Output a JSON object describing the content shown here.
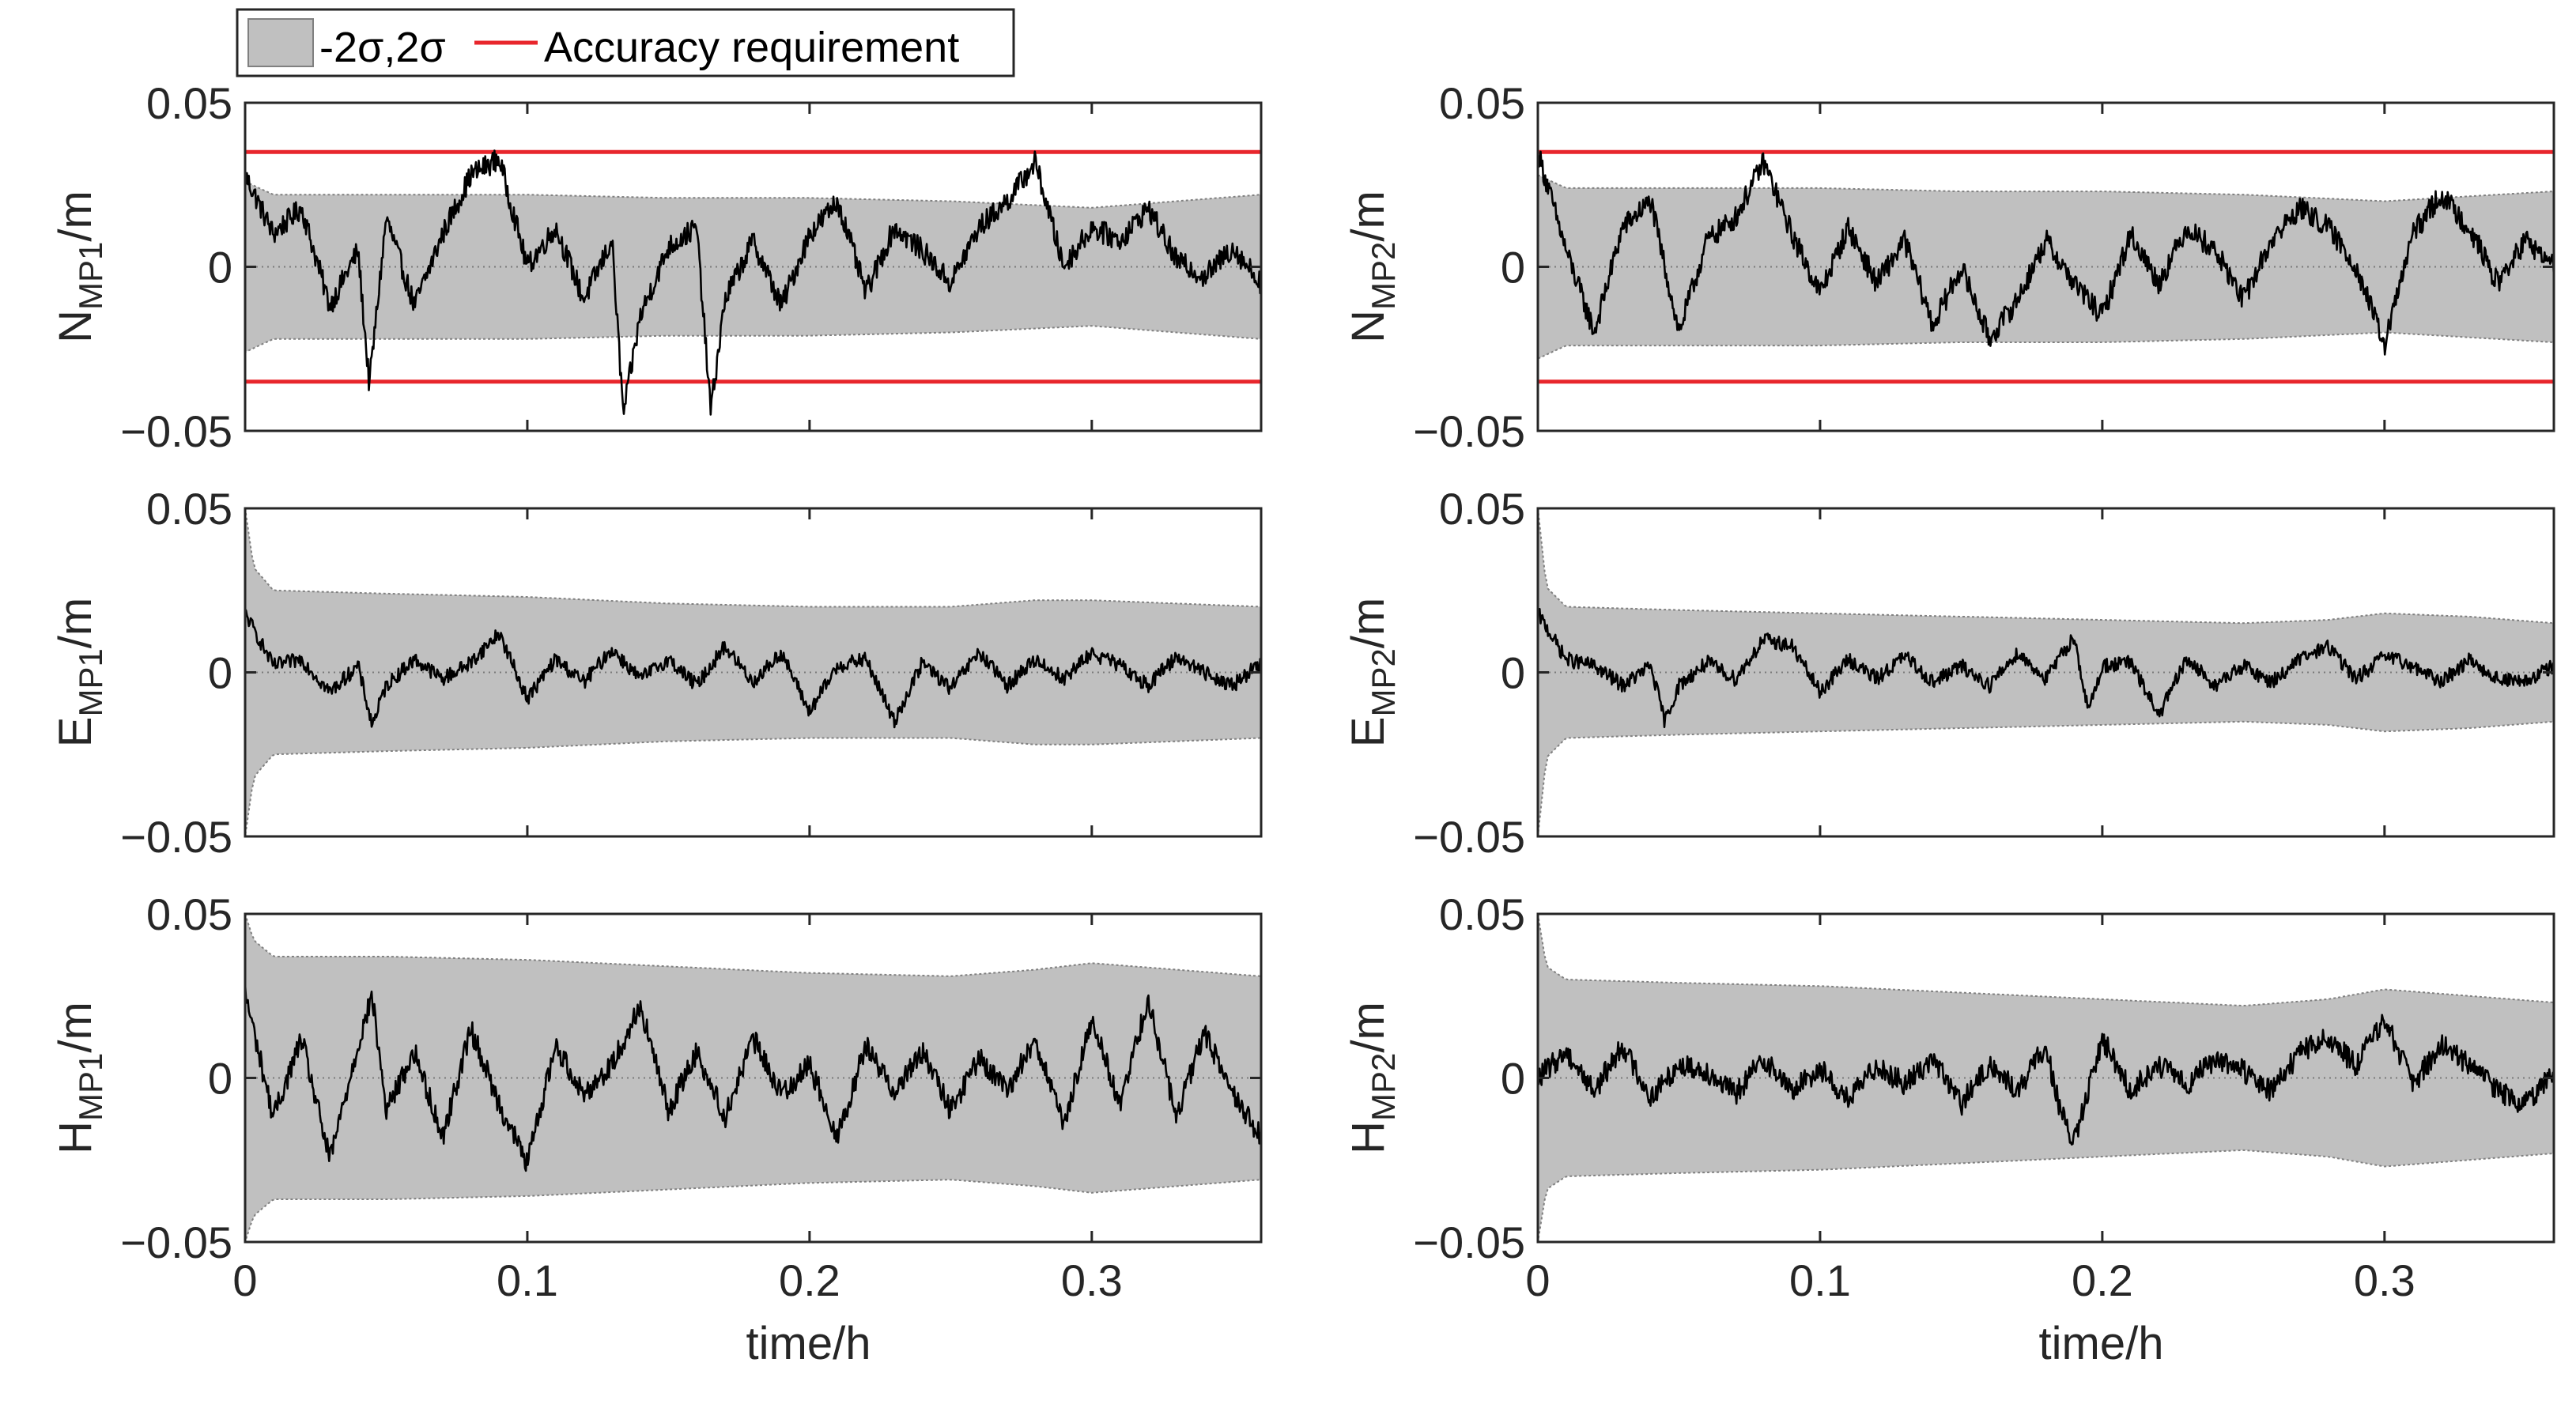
{
  "legend": {
    "band_label": "-2σ,2σ",
    "line_label": "Accuracy requirement"
  },
  "colors": {
    "band": "#c0c0c0",
    "band_edge": "#808080",
    "trace": "#000000",
    "requirement": "#e8262c"
  },
  "chart_data": [
    {
      "type": "line",
      "id": "N_MP1",
      "ylabel": {
        "main": "N",
        "sub": "MP1",
        "suffix": "/m"
      },
      "xlabel": "",
      "xlim": [
        0,
        0.36
      ],
      "ylim": [
        -0.05,
        0.05
      ],
      "yticks": [
        "0.05",
        "0",
        "−0.05"
      ],
      "xticks": [],
      "requirement": [
        0.035,
        -0.035
      ],
      "sigma2": {
        "t": [
          0,
          0.01,
          0.05,
          0.1,
          0.15,
          0.2,
          0.25,
          0.3,
          0.36
        ],
        "upper": [
          0.026,
          0.022,
          0.022,
          0.022,
          0.021,
          0.021,
          0.02,
          0.018,
          0.022
        ]
      },
      "error": {
        "t": [
          0,
          0.01,
          0.02,
          0.03,
          0.04,
          0.044,
          0.05,
          0.06,
          0.07,
          0.08,
          0.09,
          0.1,
          0.11,
          0.12,
          0.13,
          0.134,
          0.14,
          0.15,
          0.16,
          0.165,
          0.17,
          0.18,
          0.19,
          0.2,
          0.21,
          0.22,
          0.23,
          0.24,
          0.25,
          0.26,
          0.27,
          0.28,
          0.29,
          0.3,
          0.31,
          0.32,
          0.33,
          0.34,
          0.35,
          0.36
        ],
        "values": [
          0.028,
          0.01,
          0.018,
          -0.012,
          0.005,
          -0.036,
          0.015,
          -0.012,
          0.01,
          0.028,
          0.033,
          0.0,
          0.012,
          -0.01,
          0.008,
          -0.045,
          -0.015,
          0.006,
          0.012,
          -0.044,
          -0.01,
          0.008,
          -0.012,
          0.01,
          0.02,
          -0.008,
          0.012,
          0.005,
          -0.005,
          0.012,
          0.02,
          0.032,
          0.0,
          0.012,
          0.008,
          0.018,
          0.002,
          -0.003,
          0.006,
          -0.005
        ]
      }
    },
    {
      "type": "line",
      "id": "N_MP2",
      "ylabel": {
        "main": "N",
        "sub": "MP2",
        "suffix": "/m"
      },
      "xlabel": "",
      "xlim": [
        0,
        0.36
      ],
      "ylim": [
        -0.05,
        0.05
      ],
      "yticks": [
        "0.05",
        "0",
        "−0.05"
      ],
      "xticks": [],
      "requirement": [
        0.035,
        -0.035
      ],
      "sigma2": {
        "t": [
          0,
          0.01,
          0.05,
          0.1,
          0.15,
          0.2,
          0.25,
          0.3,
          0.36
        ],
        "upper": [
          0.028,
          0.024,
          0.024,
          0.024,
          0.023,
          0.023,
          0.022,
          0.02,
          0.023
        ]
      },
      "error": {
        "t": [
          0,
          0.01,
          0.02,
          0.03,
          0.04,
          0.05,
          0.06,
          0.07,
          0.08,
          0.09,
          0.1,
          0.11,
          0.12,
          0.13,
          0.14,
          0.15,
          0.16,
          0.17,
          0.18,
          0.19,
          0.2,
          0.21,
          0.22,
          0.23,
          0.24,
          0.25,
          0.26,
          0.27,
          0.28,
          0.29,
          0.3,
          0.31,
          0.32,
          0.33,
          0.34,
          0.35,
          0.36
        ],
        "values": [
          0.035,
          0.005,
          -0.02,
          0.012,
          0.02,
          -0.02,
          0.008,
          0.015,
          0.032,
          0.01,
          -0.008,
          0.012,
          -0.005,
          0.008,
          -0.018,
          0.0,
          -0.022,
          -0.01,
          0.008,
          -0.005,
          -0.015,
          0.01,
          -0.005,
          0.012,
          0.005,
          -0.01,
          0.008,
          0.018,
          0.012,
          0.0,
          -0.024,
          0.01,
          0.022,
          0.012,
          -0.005,
          0.008,
          0.0
        ]
      }
    },
    {
      "type": "line",
      "id": "E_MP1",
      "ylabel": {
        "main": "E",
        "sub": "MP1",
        "suffix": "/m"
      },
      "xlabel": "",
      "xlim": [
        0,
        0.36
      ],
      "ylim": [
        -0.05,
        0.05
      ],
      "yticks": [
        "0.05",
        "0",
        "−0.05"
      ],
      "xticks": [],
      "requirement": [],
      "sigma2": {
        "t": [
          0,
          0.003,
          0.01,
          0.05,
          0.1,
          0.15,
          0.2,
          0.25,
          0.28,
          0.3,
          0.33,
          0.36
        ],
        "upper": [
          0.05,
          0.032,
          0.025,
          0.024,
          0.023,
          0.021,
          0.02,
          0.02,
          0.022,
          0.022,
          0.021,
          0.02
        ]
      },
      "error": {
        "t": [
          0,
          0.01,
          0.02,
          0.03,
          0.04,
          0.045,
          0.05,
          0.06,
          0.07,
          0.08,
          0.09,
          0.1,
          0.11,
          0.12,
          0.13,
          0.14,
          0.15,
          0.16,
          0.17,
          0.18,
          0.19,
          0.2,
          0.21,
          0.22,
          0.23,
          0.24,
          0.25,
          0.26,
          0.27,
          0.28,
          0.29,
          0.3,
          0.31,
          0.32,
          0.33,
          0.34,
          0.35,
          0.36
        ],
        "values": [
          0.018,
          0.002,
          0.004,
          -0.006,
          0.002,
          -0.016,
          -0.004,
          0.004,
          -0.002,
          0.003,
          0.012,
          -0.008,
          0.004,
          -0.003,
          0.007,
          -0.002,
          0.004,
          -0.004,
          0.008,
          -0.003,
          0.006,
          -0.012,
          0.002,
          0.004,
          -0.015,
          0.003,
          -0.005,
          0.006,
          -0.004,
          0.004,
          -0.002,
          0.006,
          0.002,
          -0.004,
          0.005,
          0.0,
          -0.004,
          0.003
        ]
      }
    },
    {
      "type": "line",
      "id": "E_MP2",
      "ylabel": {
        "main": "E",
        "sub": "MP2",
        "suffix": "/m"
      },
      "xlabel": "",
      "xlim": [
        0,
        0.36
      ],
      "ylim": [
        -0.05,
        0.05
      ],
      "yticks": [
        "0.05",
        "0",
        "−0.05"
      ],
      "xticks": [],
      "requirement": [],
      "sigma2": {
        "t": [
          0,
          0.003,
          0.01,
          0.05,
          0.1,
          0.15,
          0.2,
          0.25,
          0.28,
          0.3,
          0.33,
          0.36
        ],
        "upper": [
          0.05,
          0.026,
          0.02,
          0.019,
          0.018,
          0.017,
          0.016,
          0.015,
          0.016,
          0.018,
          0.017,
          0.015
        ]
      },
      "error": {
        "t": [
          0,
          0.01,
          0.02,
          0.03,
          0.04,
          0.045,
          0.05,
          0.06,
          0.07,
          0.08,
          0.09,
          0.1,
          0.11,
          0.12,
          0.13,
          0.14,
          0.15,
          0.16,
          0.17,
          0.18,
          0.19,
          0.195,
          0.2,
          0.21,
          0.22,
          0.23,
          0.24,
          0.25,
          0.26,
          0.27,
          0.28,
          0.29,
          0.3,
          0.31,
          0.32,
          0.33,
          0.34,
          0.35,
          0.36
        ],
        "values": [
          0.018,
          0.004,
          0.002,
          -0.004,
          0.002,
          -0.015,
          -0.004,
          0.003,
          -0.002,
          0.01,
          0.008,
          -0.006,
          0.004,
          -0.002,
          0.005,
          -0.003,
          0.002,
          -0.004,
          0.006,
          -0.002,
          0.011,
          -0.012,
          0.002,
          0.003,
          -0.013,
          0.004,
          -0.004,
          0.002,
          -0.003,
          0.004,
          0.008,
          -0.002,
          0.005,
          0.002,
          -0.003,
          0.004,
          -0.002,
          -0.003,
          0.002
        ]
      }
    },
    {
      "type": "line",
      "id": "H_MP1",
      "ylabel": {
        "main": "H",
        "sub": "MP1",
        "suffix": "/m"
      },
      "xlabel": "time/h",
      "xlim": [
        0,
        0.36
      ],
      "ylim": [
        -0.05,
        0.05
      ],
      "yticks": [
        "0.05",
        "0",
        "−0.05"
      ],
      "xticks": [
        "0",
        "0.1",
        "0.2",
        "0.3"
      ],
      "xtick_values": [
        0,
        0.1,
        0.2,
        0.3
      ],
      "requirement": [],
      "sigma2": {
        "t": [
          0,
          0.003,
          0.01,
          0.05,
          0.1,
          0.15,
          0.2,
          0.25,
          0.28,
          0.3,
          0.33,
          0.36
        ],
        "upper": [
          0.05,
          0.042,
          0.037,
          0.037,
          0.036,
          0.034,
          0.032,
          0.031,
          0.033,
          0.035,
          0.033,
          0.031
        ]
      },
      "error": {
        "t": [
          0,
          0.01,
          0.02,
          0.03,
          0.04,
          0.045,
          0.05,
          0.06,
          0.07,
          0.08,
          0.09,
          0.1,
          0.11,
          0.12,
          0.13,
          0.14,
          0.15,
          0.16,
          0.17,
          0.18,
          0.19,
          0.2,
          0.21,
          0.22,
          0.23,
          0.24,
          0.25,
          0.26,
          0.27,
          0.28,
          0.29,
          0.3,
          0.31,
          0.32,
          0.33,
          0.34,
          0.35,
          0.36
        ],
        "values": [
          0.026,
          -0.012,
          0.012,
          -0.025,
          0.01,
          0.025,
          -0.01,
          0.008,
          -0.018,
          0.015,
          -0.008,
          -0.026,
          0.01,
          -0.005,
          0.004,
          0.022,
          -0.01,
          0.008,
          -0.012,
          0.012,
          -0.005,
          0.004,
          -0.018,
          0.01,
          -0.004,
          0.008,
          -0.01,
          0.006,
          -0.004,
          0.012,
          -0.015,
          0.018,
          -0.008,
          0.024,
          -0.012,
          0.014,
          -0.005,
          -0.018
        ]
      }
    },
    {
      "type": "line",
      "id": "H_MP2",
      "ylabel": {
        "main": "H",
        "sub": "MP2",
        "suffix": "/m"
      },
      "xlabel": "time/h",
      "xlim": [
        0,
        0.36
      ],
      "ylim": [
        -0.05,
        0.05
      ],
      "yticks": [
        "0.05",
        "0",
        "−0.05"
      ],
      "xticks": [
        "0",
        "0.1",
        "0.2",
        "0.3"
      ],
      "xtick_values": [
        0,
        0.1,
        0.2,
        0.3
      ],
      "requirement": [],
      "sigma2": {
        "t": [
          0,
          0.003,
          0.01,
          0.05,
          0.1,
          0.15,
          0.2,
          0.25,
          0.28,
          0.3,
          0.33,
          0.36
        ],
        "upper": [
          0.05,
          0.034,
          0.03,
          0.029,
          0.028,
          0.026,
          0.024,
          0.022,
          0.024,
          0.027,
          0.025,
          0.023
        ]
      },
      "error": {
        "t": [
          0,
          0.01,
          0.02,
          0.03,
          0.04,
          0.05,
          0.06,
          0.07,
          0.08,
          0.09,
          0.1,
          0.11,
          0.12,
          0.13,
          0.14,
          0.15,
          0.16,
          0.17,
          0.18,
          0.185,
          0.19,
          0.2,
          0.21,
          0.22,
          0.23,
          0.24,
          0.25,
          0.26,
          0.27,
          0.28,
          0.29,
          0.3,
          0.31,
          0.32,
          0.33,
          0.34,
          0.35,
          0.36
        ],
        "values": [
          0.0,
          0.008,
          -0.004,
          0.01,
          -0.006,
          0.004,
          0.002,
          -0.005,
          0.006,
          -0.004,
          0.003,
          -0.007,
          0.004,
          -0.002,
          0.006,
          -0.008,
          0.004,
          -0.004,
          0.01,
          -0.01,
          -0.02,
          0.012,
          -0.004,
          0.004,
          -0.002,
          0.006,
          0.002,
          -0.004,
          0.008,
          0.012,
          0.004,
          0.018,
          -0.002,
          0.01,
          0.004,
          -0.004,
          -0.008,
          0.002
        ]
      }
    }
  ]
}
